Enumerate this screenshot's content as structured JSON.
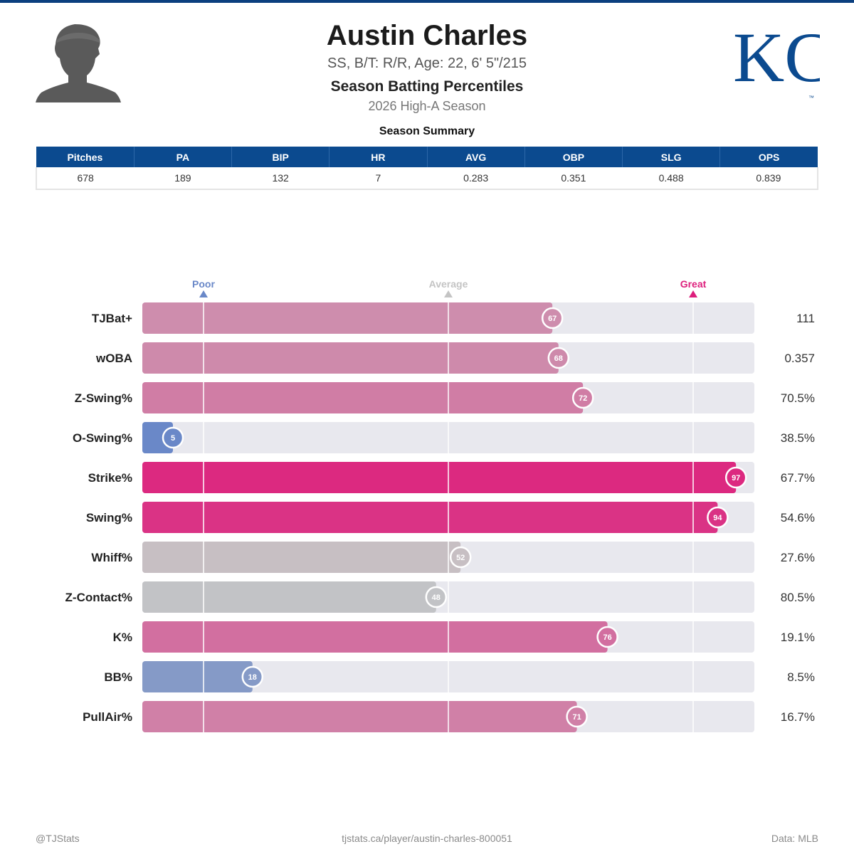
{
  "header": {
    "name": "Austin Charles",
    "bio": "SS, B/T: R/R, Age: 22, 6' 5\"/215",
    "subtitle": "Season Batting Percentiles",
    "season": "2026 High-A Season",
    "logo_text": "KC"
  },
  "summary": {
    "title": "Season Summary",
    "columns": [
      "Pitches",
      "PA",
      "BIP",
      "HR",
      "AVG",
      "OBP",
      "SLG",
      "OPS"
    ],
    "values": [
      "678",
      "189",
      "132",
      "7",
      "0.283",
      "0.351",
      "0.488",
      "0.839"
    ]
  },
  "chart_data": {
    "type": "bar",
    "orientation": "horizontal",
    "scale_labels": {
      "poor": "Poor",
      "average": "Average",
      "great": "Great"
    },
    "xlim": [
      0,
      100
    ],
    "reference_lines": [
      10,
      50,
      90
    ],
    "categories": [
      "TJBat+",
      "wOBA",
      "Z-Swing%",
      "O-Swing%",
      "Strike%",
      "Swing%",
      "Whiff%",
      "Z-Contact%",
      "K%",
      "BB%",
      "PullAir%"
    ],
    "percentiles": [
      67,
      68,
      72,
      5,
      97,
      94,
      52,
      48,
      76,
      18,
      71
    ],
    "stat_values": [
      "111",
      "0.357",
      "70.5%",
      "38.5%",
      "67.7%",
      "54.6%",
      "27.6%",
      "80.5%",
      "19.1%",
      "8.5%",
      "16.7%"
    ],
    "colors": {
      "poor": "#6a88c8",
      "average": "#c6c6c6",
      "great": "#dd1f7c",
      "track": "#e8e8ee",
      "poor_label": "#6a88c8",
      "average_label": "#c4c4c4",
      "great_label": "#dd1f7c"
    }
  },
  "footer": {
    "left": "@TJStats",
    "center": "tjstats.ca/player/austin-charles-800051",
    "right": "Data: MLB"
  },
  "colors": {
    "header_bar": "#0b4a8f",
    "logo": "#0b4a8f"
  }
}
